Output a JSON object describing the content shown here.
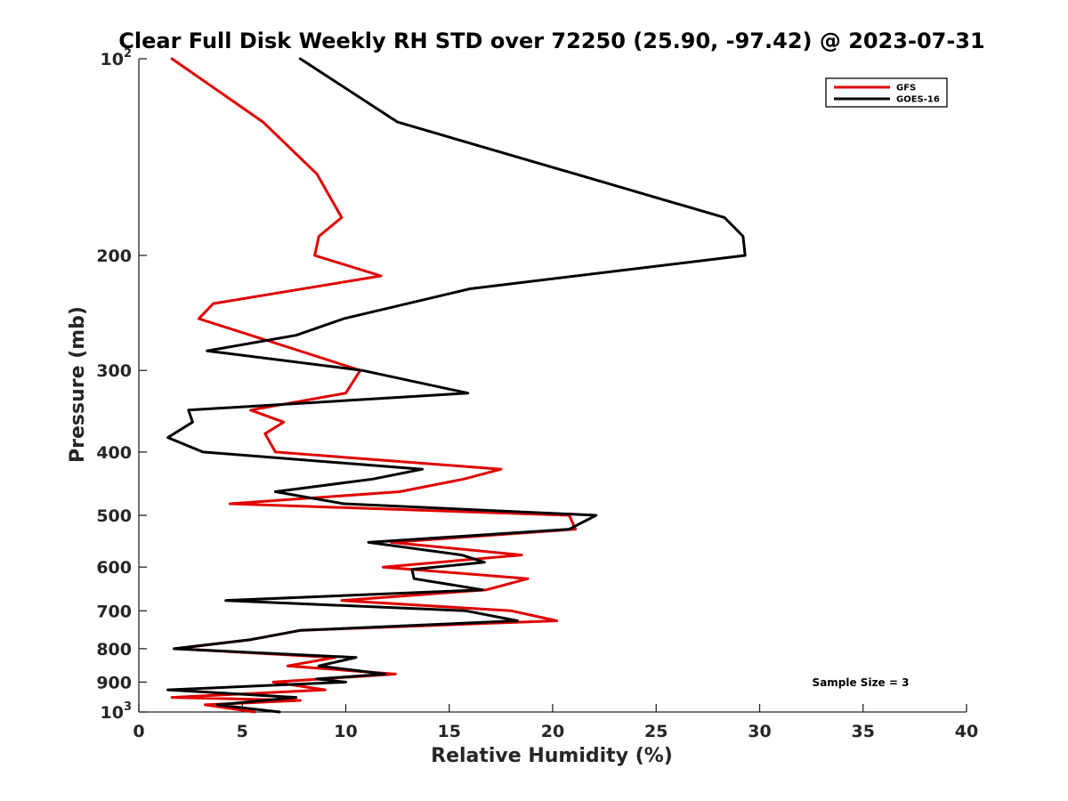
{
  "chart_data": {
    "type": "line",
    "title": "Clear Full Disk Weekly RH STD over 72250 (25.90, -97.42) @ 2023-07-31",
    "xlabel": "Relative Humidity (%)",
    "ylabel": "Pressure (mb)",
    "xlim": [
      0,
      40
    ],
    "ylim": [
      100,
      1000
    ],
    "y_scale": "log",
    "y_reversed": true,
    "x_ticks": [
      "0",
      "5",
      "10",
      "15",
      "20",
      "25",
      "30",
      "35",
      "40"
    ],
    "y_ticks": [
      {
        "value": 100,
        "base": "10",
        "exp": "2"
      },
      {
        "value": 200,
        "label": "200"
      },
      {
        "value": 300,
        "label": "300"
      },
      {
        "value": 400,
        "label": "400"
      },
      {
        "value": 500,
        "label": "500"
      },
      {
        "value": 600,
        "label": "600"
      },
      {
        "value": 700,
        "label": "700"
      },
      {
        "value": 800,
        "label": "800"
      },
      {
        "value": 900,
        "label": "900"
      },
      {
        "value": 1000,
        "base": "10",
        "exp": "3"
      }
    ],
    "grid": false,
    "legend_position": "top-right",
    "annotation": "Sample Size = 3",
    "series": [
      {
        "name": "GFS",
        "color": "#e00000",
        "points": [
          [
            1.6,
            100
          ],
          [
            6.0,
            125
          ],
          [
            8.6,
            150
          ],
          [
            9.8,
            175
          ],
          [
            8.7,
            187
          ],
          [
            8.5,
            200
          ],
          [
            11.7,
            215
          ],
          [
            3.6,
            237
          ],
          [
            2.9,
            250
          ],
          [
            7.0,
            275
          ],
          [
            10.7,
            300
          ],
          [
            10.0,
            325
          ],
          [
            5.4,
            345
          ],
          [
            7.0,
            360
          ],
          [
            6.1,
            375
          ],
          [
            6.6,
            400
          ],
          [
            17.5,
            425
          ],
          [
            15.7,
            440
          ],
          [
            12.6,
            460
          ],
          [
            4.4,
            480
          ],
          [
            20.8,
            500
          ],
          [
            21.1,
            525
          ],
          [
            12.2,
            550
          ],
          [
            18.5,
            575
          ],
          [
            11.8,
            600
          ],
          [
            18.8,
            625
          ],
          [
            16.8,
            650
          ],
          [
            9.8,
            675
          ],
          [
            18.0,
            700
          ],
          [
            20.2,
            725
          ],
          [
            7.8,
            750
          ],
          [
            5.4,
            775
          ],
          [
            1.8,
            800
          ],
          [
            9.5,
            825
          ],
          [
            7.2,
            850
          ],
          [
            12.4,
            875
          ],
          [
            6.5,
            900
          ],
          [
            9.0,
            925
          ],
          [
            1.6,
            950
          ],
          [
            7.8,
            960
          ],
          [
            3.2,
            975
          ],
          [
            5.6,
            1000
          ]
        ]
      },
      {
        "name": "GOES-16",
        "color": "#000000",
        "points": [
          [
            7.8,
            100
          ],
          [
            12.5,
            125
          ],
          [
            28.3,
            175
          ],
          [
            29.2,
            187
          ],
          [
            29.3,
            200
          ],
          [
            16.0,
            225
          ],
          [
            9.9,
            250
          ],
          [
            7.6,
            265
          ],
          [
            3.3,
            280
          ],
          [
            10.8,
            300
          ],
          [
            15.9,
            325
          ],
          [
            2.4,
            345
          ],
          [
            2.6,
            360
          ],
          [
            1.4,
            380
          ],
          [
            3.1,
            400
          ],
          [
            13.7,
            425
          ],
          [
            11.3,
            440
          ],
          [
            6.6,
            460
          ],
          [
            9.9,
            480
          ],
          [
            22.1,
            500
          ],
          [
            20.8,
            525
          ],
          [
            11.1,
            550
          ],
          [
            15.6,
            575
          ],
          [
            16.7,
            590
          ],
          [
            13.2,
            605
          ],
          [
            13.3,
            625
          ],
          [
            16.6,
            650
          ],
          [
            4.2,
            675
          ],
          [
            15.8,
            700
          ],
          [
            18.3,
            725
          ],
          [
            7.8,
            750
          ],
          [
            5.4,
            775
          ],
          [
            1.7,
            800
          ],
          [
            10.5,
            825
          ],
          [
            8.7,
            850
          ],
          [
            11.9,
            875
          ],
          [
            8.6,
            890
          ],
          [
            10.0,
            900
          ],
          [
            1.4,
            925
          ],
          [
            7.6,
            950
          ],
          [
            3.8,
            975
          ],
          [
            5.0,
            985
          ],
          [
            6.8,
            1000
          ]
        ]
      }
    ]
  }
}
